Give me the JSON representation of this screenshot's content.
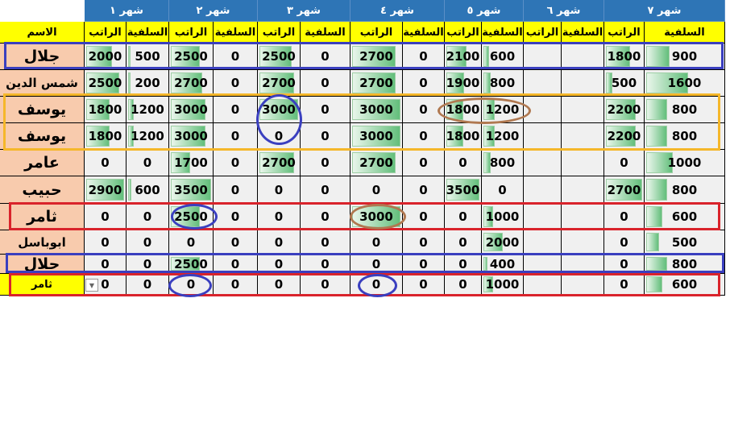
{
  "sheet": {
    "name_header": "الاسم",
    "months": [
      "شهر ١",
      "شهر ٢",
      "شهر ٣",
      "شهر ٤",
      "شهر ٥",
      "شهر ٦",
      "شهر ٧"
    ],
    "sub_headers": [
      "الراتب",
      "السلفية"
    ],
    "rows": [
      {
        "name": "جلال",
        "values": [
          "2000",
          "500",
          "2500",
          "0",
          "2500",
          "0",
          "2700",
          "0",
          "2100",
          "600",
          "",
          "",
          "1800",
          "900"
        ]
      },
      {
        "name": "شمس الدين",
        "values": [
          "2500",
          "200",
          "2700",
          "0",
          "2700",
          "0",
          "2700",
          "0",
          "1900",
          "800",
          "",
          "",
          "500",
          "1600"
        ]
      },
      {
        "name": "يوسف",
        "values": [
          "1800",
          "1200",
          "3000",
          "0",
          "3000",
          "0",
          "3000",
          "0",
          "1800",
          "1200",
          "",
          "",
          "2200",
          "800"
        ]
      },
      {
        "name": "يوسف",
        "values": [
          "1800",
          "1200",
          "3000",
          "0",
          "0",
          "0",
          "3000",
          "0",
          "1800",
          "1200",
          "",
          "",
          "2200",
          "800"
        ]
      },
      {
        "name": "عامر",
        "values": [
          "0",
          "0",
          "1700",
          "0",
          "2700",
          "0",
          "2700",
          "0",
          "0",
          "800",
          "",
          "",
          "0",
          "1000"
        ]
      },
      {
        "name": "حبيب",
        "values": [
          "2900",
          "600",
          "3500",
          "0",
          "0",
          "0",
          "0",
          "0",
          "3500",
          "0",
          "",
          "",
          "2700",
          "800"
        ]
      },
      {
        "name": "ثامر",
        "values": [
          "0",
          "0",
          "2500",
          "0",
          "0",
          "0",
          "3000",
          "0",
          "0",
          "1000",
          "",
          "",
          "0",
          "600"
        ]
      },
      {
        "name": "ابوباسل",
        "values": [
          "0",
          "0",
          "0",
          "0",
          "0",
          "0",
          "0",
          "0",
          "0",
          "2000",
          "",
          "",
          "0",
          "500"
        ]
      },
      {
        "name": "جلال",
        "values": [
          "0",
          "0",
          "2500",
          "0",
          "0",
          "0",
          "0",
          "0",
          "0",
          "400",
          "",
          "",
          "0",
          "800"
        ]
      },
      {
        "name": "ثامر",
        "values": [
          "0",
          "0",
          "0",
          "0",
          "0",
          "0",
          "0",
          "0",
          "0",
          "1000",
          "",
          "",
          "0",
          "600"
        ],
        "selected": true,
        "has_dropdown": true
      }
    ]
  },
  "colors": {
    "month_header": "#2e75b6",
    "sub_header": "#ffff00",
    "name_cell": "#f8cbad",
    "data_bar": "#63be7b",
    "blue_mark": "#3a3fbf",
    "orange_mark": "#f5b72a",
    "red_mark": "#d9232b",
    "brown_mark": "#b07850"
  },
  "icons": {
    "dropdown": "chevron-down-icon"
  }
}
